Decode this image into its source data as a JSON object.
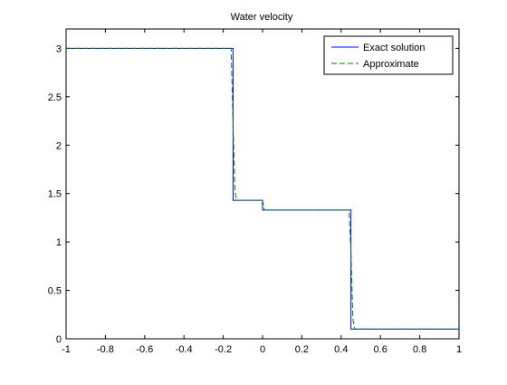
{
  "chart_data": {
    "type": "line",
    "title": "Water velocity",
    "xlabel": "",
    "ylabel": "",
    "xlim": [
      -1,
      1
    ],
    "ylim": [
      0,
      3.2
    ],
    "grid": false,
    "legend_position": "top-right",
    "x_ticks": [
      {
        "value": -1,
        "label": "-1"
      },
      {
        "value": -0.8,
        "label": "-0.8"
      },
      {
        "value": -0.6,
        "label": "-0.6"
      },
      {
        "value": -0.4,
        "label": "-0.4"
      },
      {
        "value": -0.2,
        "label": "-0.2"
      },
      {
        "value": 0,
        "label": "0"
      },
      {
        "value": 0.2,
        "label": "0.2"
      },
      {
        "value": 0.4,
        "label": "0.4"
      },
      {
        "value": 0.6,
        "label": "0.6"
      },
      {
        "value": 0.8,
        "label": "0.8"
      },
      {
        "value": 1,
        "label": "1"
      }
    ],
    "y_ticks": [
      {
        "value": 0,
        "label": "0"
      },
      {
        "value": 0.5,
        "label": "0.5"
      },
      {
        "value": 1,
        "label": "1"
      },
      {
        "value": 1.5,
        "label": "1.5"
      },
      {
        "value": 2,
        "label": "2"
      },
      {
        "value": 2.5,
        "label": "2.5"
      },
      {
        "value": 3,
        "label": "3"
      }
    ],
    "series": [
      {
        "name": "Exact solution",
        "color": "#0000ff",
        "style": "solid",
        "x": [
          -1,
          -0.15,
          -0.15,
          0,
          0,
          0.45,
          0.45,
          1
        ],
        "y": [
          3,
          3,
          1.43,
          1.43,
          1.33,
          1.33,
          0.1,
          0.1
        ]
      },
      {
        "name": "Approximate",
        "color": "#008000",
        "style": "dashed",
        "x": [
          -1,
          -0.16,
          -0.15,
          -0.14,
          -0.13,
          0,
          0.01,
          0.44,
          0.45,
          0.46,
          0.47,
          1
        ],
        "y": [
          3,
          3,
          2.2,
          1.5,
          1.43,
          1.43,
          1.33,
          1.33,
          0.9,
          0.2,
          0.1,
          0.1
        ]
      }
    ]
  }
}
